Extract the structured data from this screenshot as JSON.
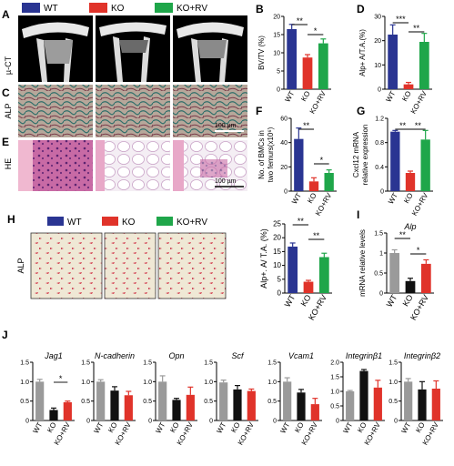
{
  "panel_labels": {
    "A": "A",
    "B": "B",
    "C": "C",
    "D": "D",
    "E": "E",
    "F": "F",
    "G": "G",
    "H": "H",
    "I": "I",
    "J": "J"
  },
  "row_labels": {
    "uct": "µ-CT",
    "alp": "ALP",
    "he": "HE",
    "alp_h": "ALP"
  },
  "scalebars": {
    "alp": "100 µm",
    "he": "100 µm"
  },
  "legend_top": [
    {
      "label": "WT",
      "color": "#2a3592"
    },
    {
      "label": "KO",
      "color": "#e0332a"
    },
    {
      "label": "KO+RV",
      "color": "#1fa64a"
    }
  ],
  "legend_h": [
    {
      "label": "WT",
      "color": "#2a3592"
    },
    {
      "label": "KO",
      "color": "#e0332a"
    },
    {
      "label": "KO+RV",
      "color": "#1fa64a"
    }
  ],
  "colors": {
    "wt": "#2a3592",
    "ko": "#e0332a",
    "rv": "#1fa64a",
    "gray": "#9a9a9a",
    "black": "#111111",
    "red": "#e0332a"
  },
  "chart_data": [
    {
      "id": "B",
      "type": "bar",
      "ylabel": "BV/TV (%)",
      "ylim": [
        0,
        20
      ],
      "yticks": [
        0,
        5,
        10,
        15,
        20
      ],
      "categories": [
        "WT",
        "KO",
        "KO+RV"
      ],
      "values": [
        16.5,
        8.7,
        12.6
      ],
      "errors": [
        1.3,
        0.8,
        1.2
      ],
      "significance": [
        {
          "from": 0,
          "to": 1,
          "label": "**"
        },
        {
          "from": 1,
          "to": 2,
          "label": "*"
        }
      ]
    },
    {
      "id": "D",
      "type": "bar",
      "ylabel": "Alp+ A/T.A.(%)",
      "ylim": [
        0,
        30
      ],
      "yticks": [
        0,
        10,
        20,
        30
      ],
      "categories": [
        "WT",
        "KO",
        "KO+RV"
      ],
      "values": [
        22.5,
        2.0,
        19.5
      ],
      "errors": [
        4.0,
        0.8,
        3.5
      ],
      "significance": [
        {
          "from": 0,
          "to": 1,
          "label": "***"
        },
        {
          "from": 1,
          "to": 2,
          "label": "**"
        }
      ]
    },
    {
      "id": "F",
      "type": "bar",
      "ylabel": "No. of BMCs in two femurs(x10⁶)",
      "ylim": [
        0,
        60
      ],
      "yticks": [
        0,
        20,
        40,
        60
      ],
      "categories": [
        "WT",
        "KO",
        "KO+RV"
      ],
      "values": [
        43,
        8,
        15
      ],
      "errors": [
        9,
        3,
        2.5
      ],
      "significance": [
        {
          "from": 0,
          "to": 1,
          "label": "**"
        },
        {
          "from": 1,
          "to": 2,
          "label": "*"
        }
      ]
    },
    {
      "id": "G",
      "type": "bar",
      "ylabel": "Cxcl12 mRNA relative expression",
      "ylim": [
        0,
        1.2
      ],
      "yticks": [
        0,
        0.4,
        0.8,
        1.2
      ],
      "categories": [
        "WT",
        "KO",
        "KO+RV"
      ],
      "values": [
        0.98,
        0.3,
        0.85
      ],
      "errors": [
        0.02,
        0.03,
        0.15
      ],
      "significance": [
        {
          "from": 0,
          "to": 1,
          "label": "**"
        },
        {
          "from": 1,
          "to": 2,
          "label": "**"
        }
      ]
    },
    {
      "id": "H",
      "type": "bar",
      "ylabel": "Alp+. A/ T.A. (%)",
      "ylim": [
        0,
        25
      ],
      "yticks": [
        0,
        5,
        10,
        15,
        20,
        25
      ],
      "categories": [
        "WT",
        "KO",
        "KO+RV"
      ],
      "values": [
        16.8,
        4.1,
        13
      ],
      "errors": [
        1.3,
        0.5,
        1.4
      ],
      "significance": [
        {
          "from": 0,
          "to": 1,
          "label": "**"
        },
        {
          "from": 1,
          "to": 2,
          "label": "**"
        }
      ]
    },
    {
      "id": "I",
      "type": "bar",
      "title": "Alp",
      "ylabel": "mRNA relative levels",
      "ylim": [
        0,
        1.5
      ],
      "yticks": [
        0,
        0.5,
        1.0,
        1.5
      ],
      "categories": [
        "WT",
        "KO",
        "KO+RV"
      ],
      "values": [
        1.0,
        0.3,
        0.73
      ],
      "errors": [
        0.08,
        0.07,
        0.1
      ],
      "significance": [
        {
          "from": 0,
          "to": 1,
          "label": "**"
        },
        {
          "from": 1,
          "to": 2,
          "label": "*"
        }
      ]
    }
  ],
  "j_charts": [
    {
      "title": "Jag1",
      "ylim": [
        0,
        1.5
      ],
      "yticks": [
        "0",
        "0.5",
        "1.0",
        "1.5"
      ],
      "values": [
        1.0,
        0.27,
        0.47
      ],
      "errors": [
        0.06,
        0.05,
        0.03
      ],
      "significance": [
        {
          "from": 1,
          "to": 2,
          "label": "*"
        }
      ]
    },
    {
      "title": "N-cadherin",
      "ylim": [
        0,
        1.5
      ],
      "yticks": [
        "0",
        "0.5",
        "1.0",
        "1.5"
      ],
      "values": [
        1.0,
        0.77,
        0.65
      ],
      "errors": [
        0.05,
        0.1,
        0.1
      ],
      "significance": []
    },
    {
      "title": "Opn",
      "ylim": [
        0,
        1.5
      ],
      "yticks": [
        "0",
        "0.5",
        "1.0",
        "1.5"
      ],
      "values": [
        1.0,
        0.53,
        0.66
      ],
      "errors": [
        0.15,
        0.04,
        0.2
      ],
      "significance": []
    },
    {
      "title": "Scf",
      "ylim": [
        0,
        1.5
      ],
      "yticks": [
        "0",
        "0.5",
        "1.0",
        "1.5"
      ],
      "values": [
        0.98,
        0.8,
        0.76
      ],
      "errors": [
        0.06,
        0.1,
        0.05
      ],
      "significance": []
    },
    {
      "title": "Vcam1",
      "ylim": [
        0,
        1.5
      ],
      "yticks": [
        "0",
        "0.5",
        "1.0",
        "1.5"
      ],
      "values": [
        1.0,
        0.72,
        0.42
      ],
      "errors": [
        0.1,
        0.08,
        0.15
      ],
      "significance": []
    },
    {
      "title": "Integrinβ1",
      "ylim": [
        0,
        2.0
      ],
      "yticks": [
        "0",
        "0.5",
        "1.0",
        "1.5",
        "2.0"
      ],
      "values": [
        1.0,
        1.7,
        1.13
      ],
      "errors": [
        0.03,
        0.05,
        0.25
      ],
      "significance": []
    },
    {
      "title": "Integrinβ2",
      "ylim": [
        0,
        1.5
      ],
      "yticks": [
        "0",
        "0.5",
        "1.0",
        "1.5"
      ],
      "values": [
        1.0,
        0.8,
        0.82
      ],
      "errors": [
        0.08,
        0.2,
        0.2
      ],
      "significance": []
    }
  ],
  "j_categories": [
    "WT",
    "KO",
    "KO+RV"
  ]
}
